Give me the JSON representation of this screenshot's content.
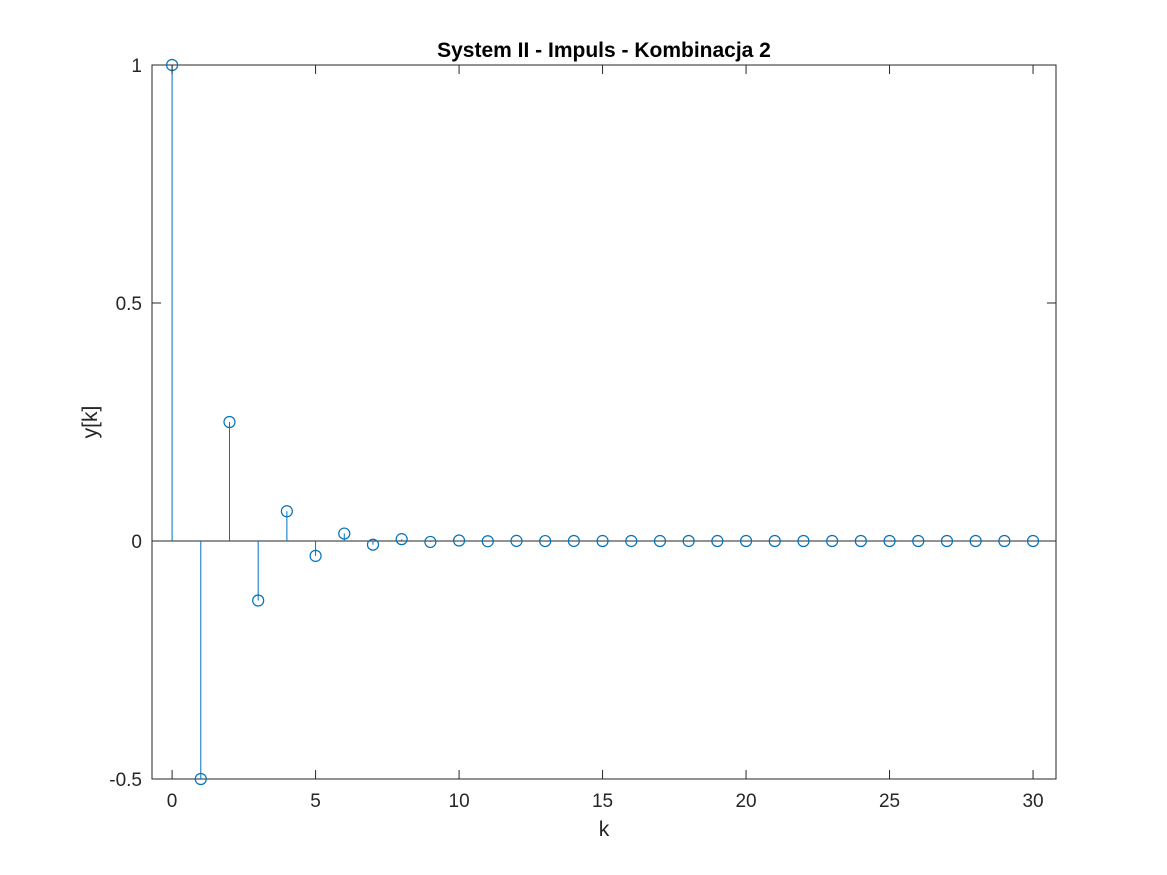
{
  "chart_data": {
    "type": "stem",
    "title": "System II - Impuls - Kombinacja 2",
    "xlabel": "k",
    "ylabel": "y[k]",
    "xlim": [
      -0.7,
      30.8
    ],
    "ylim": [
      -0.5,
      1
    ],
    "xticks": [
      0,
      5,
      10,
      15,
      20,
      25,
      30
    ],
    "xtick_labels": [
      "0",
      "5",
      "10",
      "15",
      "20",
      "25",
      "30"
    ],
    "yticks": [
      -0.5,
      0,
      0.5,
      1
    ],
    "ytick_labels": [
      "-0.5",
      "0",
      "0.5",
      "1"
    ],
    "grid": false,
    "series_color": "#0072BD",
    "baseline_color": "#262626",
    "x": [
      0,
      1,
      2,
      3,
      4,
      5,
      6,
      7,
      8,
      9,
      10,
      11,
      12,
      13,
      14,
      15,
      16,
      17,
      18,
      19,
      20,
      21,
      22,
      23,
      24,
      25,
      26,
      27,
      28,
      29,
      30
    ],
    "values": [
      1,
      -0.5,
      0.25,
      -0.125,
      0.0625,
      -0.03125,
      0.015625,
      -0.0078125,
      0.00390625,
      -0.001953125,
      0.0009765625,
      -0.00048828125,
      0.000244140625,
      -0.0001220703125,
      6.103515625e-05,
      -3.0517578125e-05,
      1.52587890625e-05,
      -7.62939453125e-06,
      3.814697265625e-06,
      -1.9073486328125e-06,
      9.5367431640625e-07,
      -4.76837158203125e-07,
      2.384185791015625e-07,
      -1.1920928955078125e-07,
      5.960464477539063e-08,
      -2.9802322387695312e-08,
      1.4901161193847656e-08,
      -7.450580596923828e-09,
      3.725290298461914e-09,
      -1.862645149230957e-09,
      9.313225746154785e-10
    ]
  }
}
